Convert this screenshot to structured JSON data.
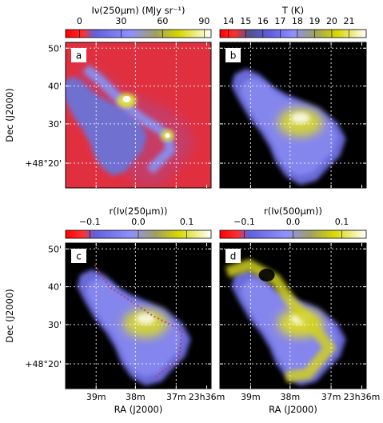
{
  "chart_data": [
    {
      "type": "heatmap",
      "panel": "a",
      "colorbar": {
        "label": "Iν(250µm) (MJy sr⁻¹)",
        "ticks": [
          "0",
          "30",
          "60",
          "90"
        ],
        "range": [
          -10,
          95
        ],
        "colors": [
          "#ff0000",
          "#8080ff",
          "#d0d000",
          "#ffffff"
        ]
      },
      "yticks": [
        "50'",
        "40'",
        "30'",
        "+48°20'"
      ],
      "ylabel": "Dec (J2000)",
      "xticks": [
        "",
        "",
        "",
        ""
      ],
      "background": "#e03040"
    },
    {
      "type": "heatmap",
      "panel": "b",
      "colorbar": {
        "label": "T (K)",
        "ticks": [
          "14",
          "15",
          "16",
          "17",
          "18",
          "19",
          "20",
          "21"
        ],
        "range": [
          13.5,
          22
        ],
        "colors": [
          "#ff0000",
          "#8080ff",
          "#d0d000",
          "#ffffff"
        ]
      },
      "yticks": [
        "",
        "",
        "",
        ""
      ],
      "xticks": [
        "",
        "",
        "",
        ""
      ],
      "background": "#000000"
    },
    {
      "type": "heatmap",
      "panel": "c",
      "colorbar": {
        "label": "r(Iν(250µm))",
        "ticks": [
          "−0.1",
          "0.0",
          "0.1"
        ],
        "range": [
          -0.15,
          0.15
        ],
        "colors": [
          "#ff0000",
          "#8080ff",
          "#d0d000",
          "#ffffff"
        ]
      },
      "yticks": [
        "50'",
        "40'",
        "30'",
        "+48°20'"
      ],
      "ylabel": "Dec (J2000)",
      "xticks": [
        "39m",
        "38m",
        "37m",
        "23h36m"
      ],
      "xlabel": "RA (J2000)",
      "background": "#000000"
    },
    {
      "type": "heatmap",
      "panel": "d",
      "colorbar": {
        "label": "r(Iν(500µm))",
        "ticks": [
          "−0.1",
          "0.0",
          "0.1"
        ],
        "range": [
          -0.15,
          0.15
        ],
        "colors": [
          "#ff0000",
          "#8080ff",
          "#d0d000",
          "#ffffff"
        ]
      },
      "yticks": [
        "",
        "",
        "",
        ""
      ],
      "xticks": [
        "39m",
        "38m",
        "37m",
        "23h36m"
      ],
      "xlabel": "RA (J2000)",
      "background": "#000000"
    }
  ]
}
